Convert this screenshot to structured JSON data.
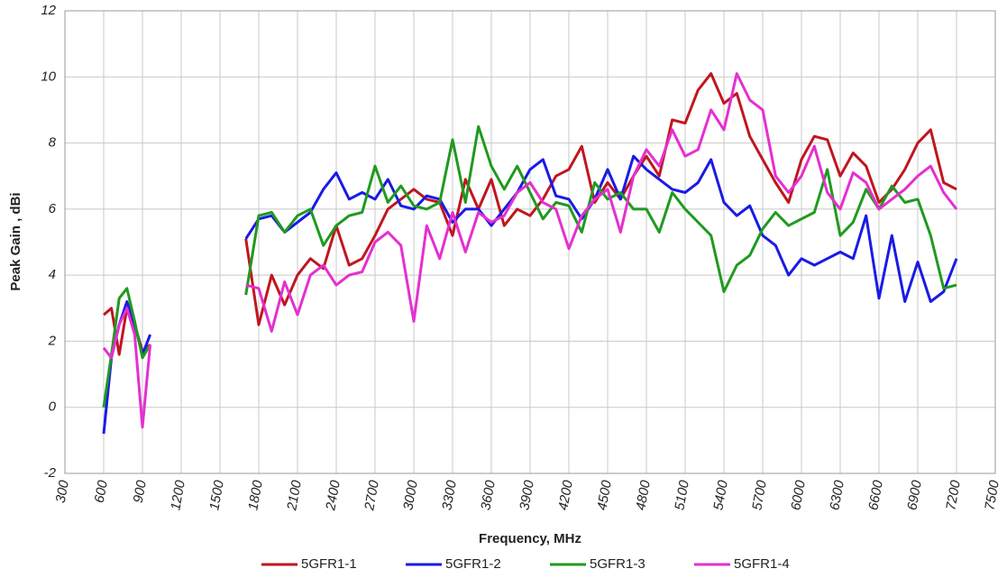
{
  "chart_data": {
    "type": "line",
    "xlabel": "Frequency, MHz",
    "ylabel": "Peak Gain , dBi",
    "x": [
      600,
      660,
      720,
      780,
      840,
      900,
      960,
      1300,
      1700,
      1800,
      1900,
      2000,
      2100,
      2200,
      2300,
      2400,
      2500,
      2600,
      2700,
      2800,
      2900,
      3000,
      3100,
      3200,
      3300,
      3400,
      3500,
      3600,
      3700,
      3800,
      3900,
      4000,
      4100,
      4200,
      4300,
      4400,
      4500,
      4600,
      4700,
      4800,
      4900,
      5000,
      5100,
      5200,
      5300,
      5400,
      5500,
      5600,
      5700,
      5800,
      5900,
      6000,
      6100,
      6200,
      6300,
      6400,
      6500,
      6600,
      6700,
      6800,
      6900,
      7000,
      7100,
      7200
    ],
    "series": [
      {
        "name": "5GFR1-1",
        "color": "#c0161f",
        "values": [
          2.8,
          3.0,
          1.6,
          3.0,
          2.5,
          1.7,
          1.9,
          null,
          5.1,
          2.5,
          4.0,
          3.1,
          4.0,
          4.5,
          4.2,
          5.5,
          4.3,
          4.5,
          5.2,
          6.0,
          6.3,
          6.6,
          6.3,
          6.2,
          5.2,
          6.9,
          6.0,
          6.9,
          5.5,
          6.0,
          5.8,
          6.3,
          7.0,
          7.2,
          7.9,
          6.2,
          6.8,
          6.3,
          7.0,
          7.6,
          7.0,
          8.7,
          8.6,
          9.6,
          10.1,
          9.2,
          9.5,
          8.2,
          7.5,
          6.8,
          6.2,
          7.5,
          8.2,
          8.1,
          7.0,
          7.7,
          7.3,
          6.2,
          6.6,
          7.2,
          8.0,
          8.4,
          6.8,
          6.6
        ]
      },
      {
        "name": "5GFR1-2",
        "color": "#1a1ae6",
        "values": [
          -0.8,
          1.5,
          2.5,
          3.2,
          2.5,
          1.6,
          2.2,
          null,
          5.1,
          5.7,
          5.8,
          5.3,
          5.6,
          5.9,
          6.6,
          7.1,
          6.3,
          6.5,
          6.3,
          6.9,
          6.1,
          6.0,
          6.4,
          6.3,
          5.6,
          6.0,
          6.0,
          5.5,
          6.0,
          6.5,
          7.2,
          7.5,
          6.4,
          6.3,
          5.7,
          6.3,
          7.2,
          6.3,
          7.6,
          7.2,
          6.9,
          6.6,
          6.5,
          6.8,
          7.5,
          6.2,
          5.8,
          6.1,
          5.2,
          4.9,
          4.0,
          4.5,
          4.3,
          4.5,
          4.7,
          4.5,
          5.8,
          3.3,
          5.2,
          3.2,
          4.4,
          3.2,
          3.5,
          4.5
        ]
      },
      {
        "name": "5GFR1-3",
        "color": "#1f9a1f",
        "values": [
          0,
          1.6,
          3.3,
          3.6,
          2.6,
          1.5,
          1.9,
          null,
          3.4,
          5.8,
          5.9,
          5.3,
          5.8,
          6.0,
          4.9,
          5.5,
          5.8,
          5.9,
          7.3,
          6.2,
          6.7,
          6.1,
          6.0,
          6.2,
          8.1,
          6.2,
          8.5,
          7.3,
          6.6,
          7.3,
          6.5,
          5.7,
          6.2,
          6.1,
          5.3,
          6.8,
          6.3,
          6.5,
          6.0,
          6.0,
          5.3,
          6.5,
          6.0,
          5.6,
          5.2,
          3.5,
          4.3,
          4.6,
          5.4,
          5.9,
          5.5,
          5.7,
          5.9,
          7.2,
          5.2,
          5.6,
          6.6,
          6.0,
          6.7,
          6.2,
          6.3,
          5.2,
          3.6,
          3.7
        ]
      },
      {
        "name": "5GFR1-4",
        "color": "#e52fd0",
        "values": [
          1.8,
          1.5,
          2.5,
          3.0,
          2.2,
          -0.6,
          1.9,
          null,
          3.7,
          3.6,
          2.3,
          3.8,
          2.8,
          4.0,
          4.3,
          3.7,
          4.0,
          4.1,
          5.0,
          5.3,
          4.9,
          2.6,
          5.5,
          4.5,
          5.9,
          4.7,
          5.9,
          5.6,
          5.8,
          6.5,
          6.8,
          6.2,
          6.0,
          4.8,
          5.8,
          6.3,
          6.6,
          5.3,
          7.0,
          7.8,
          7.3,
          8.4,
          7.6,
          7.8,
          9.0,
          8.4,
          10.1,
          9.3,
          9.0,
          7.0,
          6.5,
          7.0,
          7.9,
          6.5,
          6.0,
          7.1,
          6.8,
          6.0,
          6.3,
          6.6,
          7.0,
          7.3,
          6.5,
          6.0
        ]
      }
    ],
    "xlim": [
      300,
      7500
    ],
    "xticks": [
      300,
      600,
      900,
      1200,
      1500,
      1800,
      2100,
      2400,
      2700,
      3000,
      3300,
      3600,
      3900,
      4200,
      4500,
      4800,
      5100,
      5400,
      5700,
      6000,
      6300,
      6600,
      6900,
      7200,
      7500
    ],
    "ylim": [
      -2,
      12
    ],
    "yticks": [
      -2,
      0,
      2,
      4,
      6,
      8,
      10,
      12
    ],
    "grid": true,
    "legend": "bottom"
  }
}
